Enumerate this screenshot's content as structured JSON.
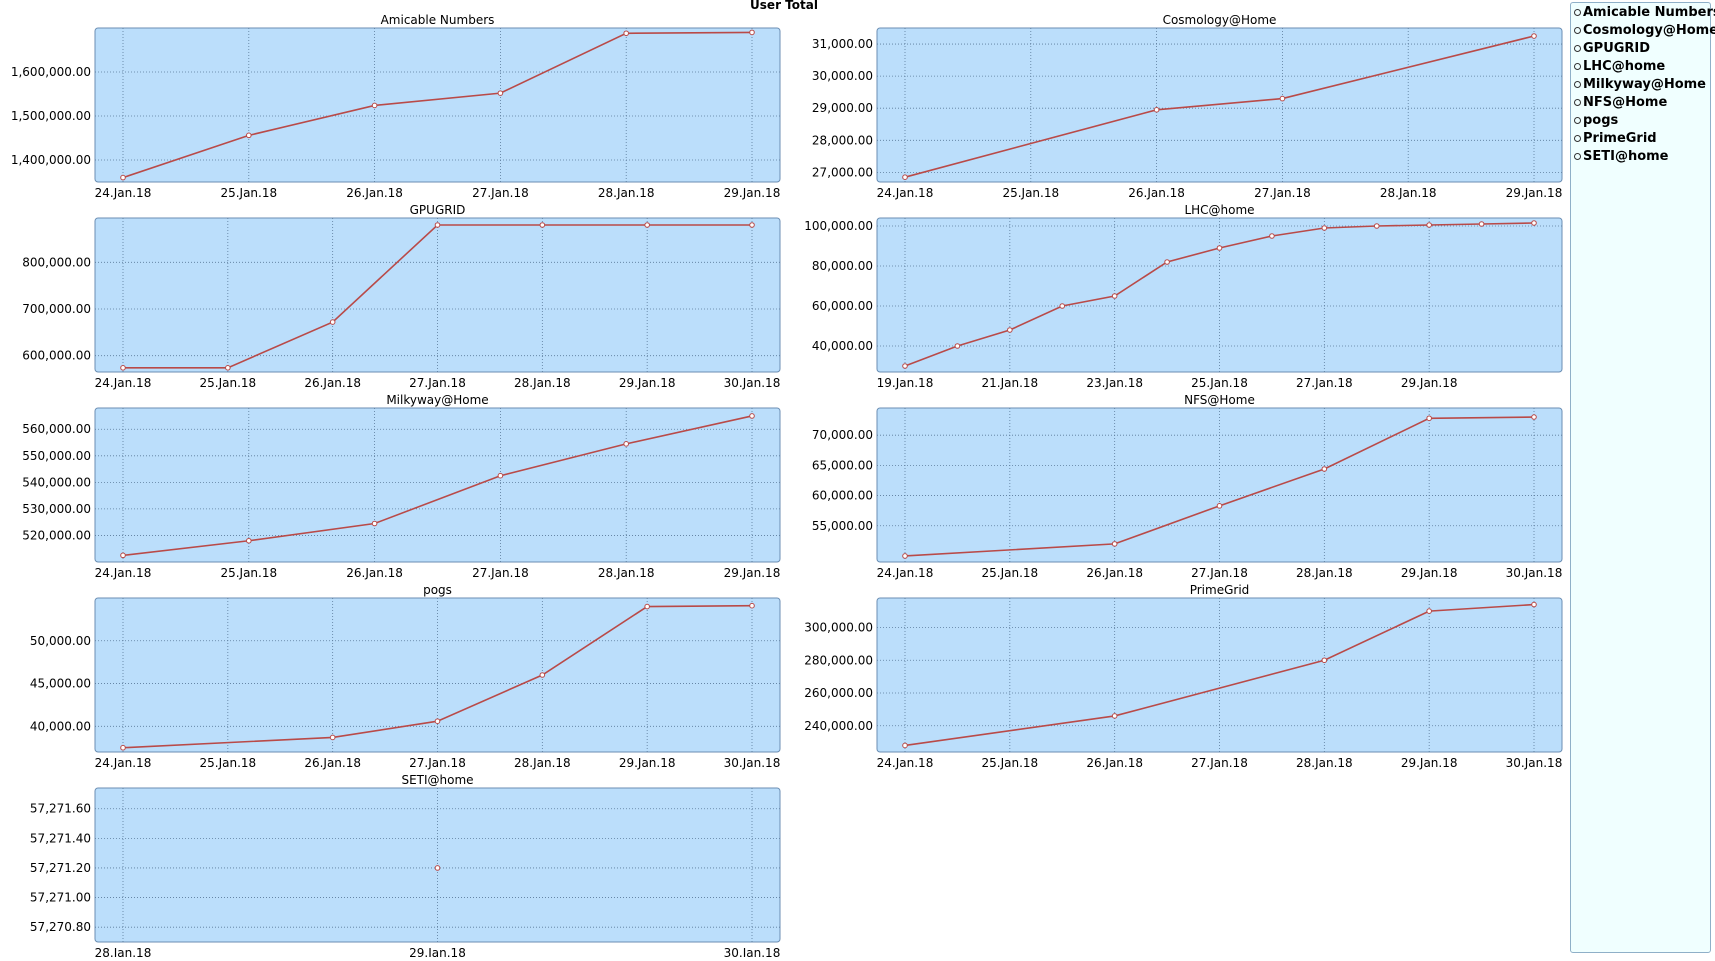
{
  "title": "User Total",
  "colors": {
    "plot_bg": "#bbdefb",
    "line": "#b94a48",
    "grid": "#5a7a9a",
    "frame": "#6b8eb3"
  },
  "legend": {
    "items": [
      "Amicable Numbers",
      "Cosmology@Home",
      "GPUGRID",
      "LHC@home",
      "Milkyway@Home",
      "NFS@Home",
      "pogs",
      "PrimeGrid",
      "SETI@home"
    ]
  },
  "chart_data": [
    {
      "type": "line",
      "title": "Amicable Numbers",
      "categories": [
        "24.Jan.18",
        "25.Jan.18",
        "26.Jan.18",
        "27.Jan.18",
        "28.Jan.18",
        "29.Jan.18"
      ],
      "x": [
        0,
        1,
        2,
        3,
        4,
        5
      ],
      "values": [
        1360000,
        1456000,
        1524000,
        1552000,
        1688000,
        1690000
      ],
      "ylim": [
        1350000,
        1700000
      ],
      "yticks": [
        1400000,
        1500000,
        1600000
      ],
      "ytick_labels": [
        "1,400,000.00",
        "1,500,000.00",
        "1,600,000.00"
      ]
    },
    {
      "type": "line",
      "title": "Cosmology@Home",
      "categories": [
        "24.Jan.18",
        "25.Jan.18",
        "26.Jan.18",
        "27.Jan.18",
        "28.Jan.18",
        "29.Jan.18"
      ],
      "x": [
        0,
        2,
        3,
        5
      ],
      "values": [
        26850,
        28950,
        29300,
        31250
      ],
      "ylim": [
        26700,
        31500
      ],
      "yticks": [
        27000,
        28000,
        29000,
        30000,
        31000
      ],
      "ytick_labels": [
        "27,000.00",
        "28,000.00",
        "29,000.00",
        "30,000.00",
        "31,000.00"
      ]
    },
    {
      "type": "line",
      "title": "GPUGRID",
      "categories": [
        "24.Jan.18",
        "25.Jan.18",
        "26.Jan.18",
        "27.Jan.18",
        "28.Jan.18",
        "29.Jan.18",
        "30.Jan.18"
      ],
      "x": [
        0,
        1,
        2,
        3,
        4,
        5,
        6
      ],
      "values": [
        574000,
        574000,
        672000,
        880000,
        880000,
        880000,
        880000
      ],
      "ylim": [
        565000,
        895000
      ],
      "yticks": [
        600000,
        700000,
        800000
      ],
      "ytick_labels": [
        "600,000.00",
        "700,000.00",
        "800,000.00"
      ]
    },
    {
      "type": "line",
      "title": "LHC@home",
      "categories": [
        "19.Jan.18",
        "21.Jan.18",
        "23.Jan.18",
        "25.Jan.18",
        "27.Jan.18",
        "29.Jan.18"
      ],
      "x": [
        0,
        1,
        2,
        3,
        4,
        5,
        6,
        7,
        8,
        9,
        10,
        11,
        12
      ],
      "values": [
        30000,
        40000,
        48000,
        60000,
        65000,
        82000,
        89000,
        95000,
        99000,
        100000,
        100500,
        101000,
        101500
      ],
      "ylim": [
        27000,
        104000
      ],
      "yticks": [
        40000,
        60000,
        80000,
        100000
      ],
      "ytick_labels": [
        "40,000.00",
        "60,000.00",
        "80,000.00",
        "100,000.00"
      ]
    },
    {
      "type": "line",
      "title": "Milkyway@Home",
      "categories": [
        "24.Jan.18",
        "25.Jan.18",
        "26.Jan.18",
        "27.Jan.18",
        "28.Jan.18",
        "29.Jan.18"
      ],
      "x": [
        0,
        1,
        2,
        3,
        4,
        5
      ],
      "values": [
        512500,
        518000,
        524500,
        542500,
        554500,
        565000
      ],
      "ylim": [
        510000,
        568000
      ],
      "yticks": [
        520000,
        530000,
        540000,
        550000,
        560000
      ],
      "ytick_labels": [
        "520,000.00",
        "530,000.00",
        "540,000.00",
        "550,000.00",
        "560,000.00"
      ]
    },
    {
      "type": "line",
      "title": "NFS@Home",
      "categories": [
        "24.Jan.18",
        "25.Jan.18",
        "26.Jan.18",
        "27.Jan.18",
        "28.Jan.18",
        "29.Jan.18",
        "30.Jan.18"
      ],
      "x": [
        0,
        2,
        3,
        4,
        5,
        6
      ],
      "values": [
        50000,
        52000,
        58300,
        64400,
        72800,
        73000
      ],
      "ylim": [
        49000,
        74500
      ],
      "yticks": [
        55000,
        60000,
        65000,
        70000
      ],
      "ytick_labels": [
        "55,000.00",
        "60,000.00",
        "65,000.00",
        "70,000.00"
      ]
    },
    {
      "type": "line",
      "title": "pogs",
      "categories": [
        "24.Jan.18",
        "25.Jan.18",
        "26.Jan.18",
        "27.Jan.18",
        "28.Jan.18",
        "29.Jan.18",
        "30.Jan.18"
      ],
      "x": [
        0,
        2,
        3,
        4,
        5,
        6
      ],
      "values": [
        37500,
        38700,
        40600,
        46000,
        54000,
        54100
      ],
      "ylim": [
        37000,
        55000
      ],
      "yticks": [
        40000,
        45000,
        50000
      ],
      "ytick_labels": [
        "40,000.00",
        "45,000.00",
        "50,000.00"
      ]
    },
    {
      "type": "line",
      "title": "PrimeGrid",
      "categories": [
        "24.Jan.18",
        "25.Jan.18",
        "26.Jan.18",
        "27.Jan.18",
        "28.Jan.18",
        "29.Jan.18",
        "30.Jan.18"
      ],
      "x": [
        0,
        2,
        4,
        5,
        6
      ],
      "values": [
        228000,
        246000,
        280000,
        310000,
        314000
      ],
      "ylim": [
        224000,
        318000
      ],
      "yticks": [
        240000,
        260000,
        280000,
        300000
      ],
      "ytick_labels": [
        "240,000.00",
        "260,000.00",
        "280,000.00",
        "300,000.00"
      ]
    },
    {
      "type": "line",
      "title": "SETI@home",
      "categories": [
        "28.Jan.18",
        "29.Jan.18",
        "30.Jan.18"
      ],
      "x": [
        1
      ],
      "values": [
        57271.2
      ],
      "ylim": [
        57270.7,
        57271.74
      ],
      "yticks": [
        57270.8,
        57271.0,
        57271.2,
        57271.4,
        57271.6
      ],
      "ytick_labels": [
        "57,270.80",
        "57,271.00",
        "57,271.20",
        "57,271.40",
        "57,271.60"
      ]
    }
  ]
}
